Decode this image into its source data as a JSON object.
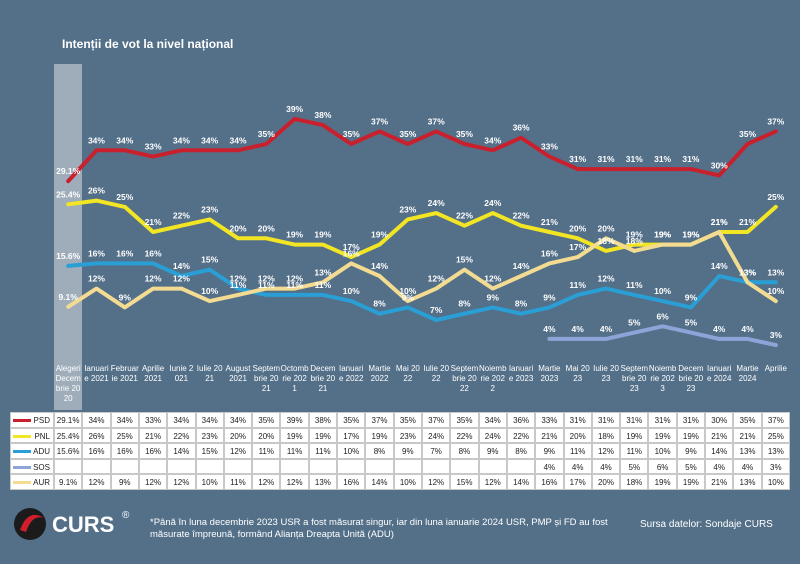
{
  "chart_data": {
    "type": "line",
    "title": "Intenții de vot la nivel național",
    "categories": [
      "Alegeri Decembrie 2020",
      "Ianuarie 2021",
      "Februarie 2021",
      "Aprilie 2021",
      "Iunie 2021",
      "Iulie 2021",
      "August 2021",
      "Septembrie 2021",
      "Octombrie 2021",
      "Decembrie 2021",
      "Ianuarie 2022",
      "Martie 2022",
      "Mai 2022",
      "Iulie 2022",
      "Septembrie 2022",
      "Noiembrie 2022",
      "Ianuarie 2023",
      "Martie 2023",
      "Mai 2023",
      "Iulie 2023",
      "Septembrie 2023",
      "Noiembrie 2023",
      "Decembrie 2023",
      "Ianuarie 2024",
      "Martie 2024",
      "Aprilie"
    ],
    "series": [
      {
        "name": "PSD",
        "color": "#c8202c",
        "values": [
          29.1,
          34,
          34,
          33,
          34,
          34,
          34,
          35,
          39,
          38,
          35,
          37,
          35,
          37,
          35,
          34,
          36,
          33,
          31,
          31,
          31,
          31,
          31,
          30,
          35,
          37
        ],
        "value_labels": [
          "29.1%",
          "34%",
          "34%",
          "33%",
          "34%",
          "34%",
          "34%",
          "35%",
          "39%",
          "38%",
          "35%",
          "37%",
          "35%",
          "37%",
          "35%",
          "34%",
          "36%",
          "33%",
          "31%",
          "31%",
          "31%",
          "31%",
          "31%",
          "30%",
          "35%",
          "37%"
        ]
      },
      {
        "name": "PNL",
        "color": "#f2e624",
        "values": [
          25.4,
          26,
          25,
          21,
          22,
          23,
          20,
          20,
          19,
          19,
          17,
          19,
          23,
          24,
          22,
          24,
          22,
          21,
          20,
          18,
          19,
          19,
          19,
          21,
          21,
          25
        ],
        "value_labels": [
          "25.4%",
          "26%",
          "25%",
          "21%",
          "22%",
          "23%",
          "20%",
          "20%",
          "19%",
          "19%",
          "17%",
          "19%",
          "23%",
          "24%",
          "22%",
          "24%",
          "22%",
          "21%",
          "20%",
          "18%",
          "19%",
          "19%",
          "19%",
          "21%",
          "21%",
          "25%"
        ]
      },
      {
        "name": "ADU",
        "color": "#2a9fd6",
        "values": [
          15.6,
          16,
          16,
          16,
          14,
          15,
          12,
          11,
          11,
          11,
          10,
          8,
          9,
          7,
          8,
          9,
          8,
          9,
          11,
          12,
          11,
          10,
          9,
          14,
          13,
          13
        ],
        "value_labels": [
          "15.6%",
          "16%",
          "16%",
          "16%",
          "14%",
          "15%",
          "12%",
          "11%",
          "11%",
          "11%",
          "10%",
          "8%",
          "9%",
          "7%",
          "8%",
          "9%",
          "8%",
          "9%",
          "11%",
          "12%",
          "11%",
          "10%",
          "9%",
          "14%",
          "13%",
          "13%"
        ]
      },
      {
        "name": "SOS",
        "color": "#8ea4d8",
        "values": [
          null,
          null,
          null,
          null,
          null,
          null,
          null,
          null,
          null,
          null,
          null,
          null,
          null,
          null,
          null,
          null,
          null,
          4,
          4,
          4,
          5,
          6,
          5,
          4,
          4,
          3
        ],
        "value_labels": [
          null,
          null,
          null,
          null,
          null,
          null,
          null,
          null,
          null,
          null,
          null,
          null,
          null,
          null,
          null,
          null,
          null,
          "4%",
          "4%",
          "4%",
          "5%",
          "6%",
          "5%",
          "4%",
          "4%",
          "3%"
        ]
      },
      {
        "name": "AUR",
        "color": "#f3dc92",
        "values": [
          9.1,
          12,
          9,
          12,
          12,
          10,
          11,
          12,
          12,
          13,
          16,
          14,
          10,
          12,
          15,
          12,
          14,
          16,
          17,
          20,
          18,
          19,
          19,
          21,
          13,
          10
        ],
        "value_labels": [
          "9.1%",
          "12%",
          "9%",
          "12%",
          "12%",
          "10%",
          "11%",
          "12%",
          "12%",
          "13%",
          "16%",
          "14%",
          "10%",
          "12%",
          "15%",
          "12%",
          "14%",
          "16%",
          "17%",
          "20%",
          "18%",
          "19%",
          "19%",
          "21%",
          "13%",
          "10%"
        ]
      }
    ],
    "ylim": [
      0,
      42
    ],
    "footnote": "*Până în luna decembrie 2023 USR a fost măsurat singur, iar din luna ianuarie 2024 USR, PMP și FD au fost măsurate împreună, formând Alianța Dreapta Unită (ADU)",
    "source": "Sursa datelor: Sondaje CURS",
    "logo": "CURS",
    "logo_mark": "®"
  }
}
